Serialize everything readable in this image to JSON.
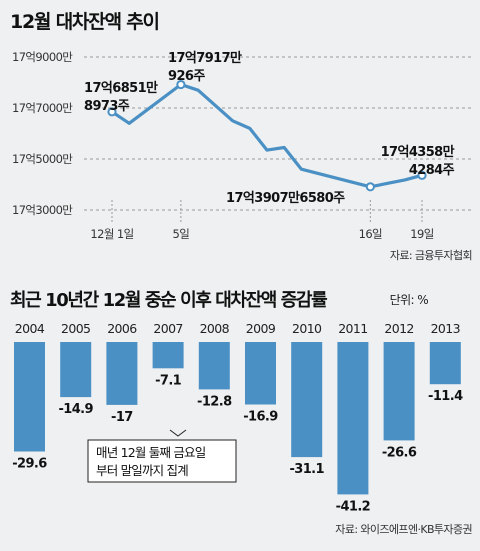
{
  "top": {
    "title": "12월 대차잔액 추이",
    "source": "자료: 금융투자협회",
    "color": "#4a90c4"
  },
  "bottom": {
    "title": "최근 10년간 12월 중순 이후 대차잔액 증감률",
    "unit": "단위: %",
    "note_line1": "매년 12월 둘째 금요일",
    "note_line2": "부터 말일까지 집계",
    "source": "자료: 와이즈에프엔·KB투자증권",
    "color": "#4a90c4"
  },
  "chart_data": [
    {
      "type": "line",
      "title": "12월 대차잔액 추이",
      "yticks": [
        "17억3000만",
        "17억5000만",
        "17억7000만",
        "17억9000만"
      ],
      "ytick_values": [
        1.73,
        1.75,
        1.77,
        1.79
      ],
      "ylim": [
        1.72,
        1.8
      ],
      "xtick_labels": [
        "12월 1일",
        "5일",
        "16일",
        "19일"
      ],
      "xtick_days": [
        1,
        5,
        16,
        19
      ],
      "x": [
        1,
        2,
        5,
        6,
        8,
        9,
        10,
        11,
        12,
        16,
        18,
        19
      ],
      "y": [
        1.7685,
        1.764,
        1.7792,
        1.777,
        1.765,
        1.762,
        1.7535,
        1.7545,
        1.746,
        1.7391,
        1.7418,
        1.7436
      ],
      "annotations": [
        {
          "line1": "17억6851만",
          "line2": "8973주"
        },
        {
          "line1": "17억7917만",
          "line2": "926주"
        },
        {
          "line1": "17억3907만6580주",
          "line2": ""
        },
        {
          "line1": "17억4358만",
          "line2": "4284주"
        }
      ],
      "source": "자료: 금융투자협회"
    },
    {
      "type": "bar",
      "title": "최근 10년간 12월 중순 이후 대차잔액 증감률",
      "categories": [
        "2004",
        "2005",
        "2006",
        "2007",
        "2008",
        "2009",
        "2010",
        "2011",
        "2012",
        "2013"
      ],
      "values": [
        -29.6,
        -14.9,
        -17,
        -7.1,
        -12.8,
        -16.9,
        -31.1,
        -41.2,
        -26.6,
        -11.4
      ],
      "value_labels": [
        "-29.6",
        "-14.9",
        "-17",
        "-7.1",
        "-12.8",
        "-16.9",
        "-31.1",
        "-41.2",
        "-26.6",
        "-11.4"
      ],
      "unit": "단위: %",
      "ylim": [
        -45,
        0
      ],
      "source": "자료: 와이즈에프엔·KB투자증권"
    }
  ]
}
